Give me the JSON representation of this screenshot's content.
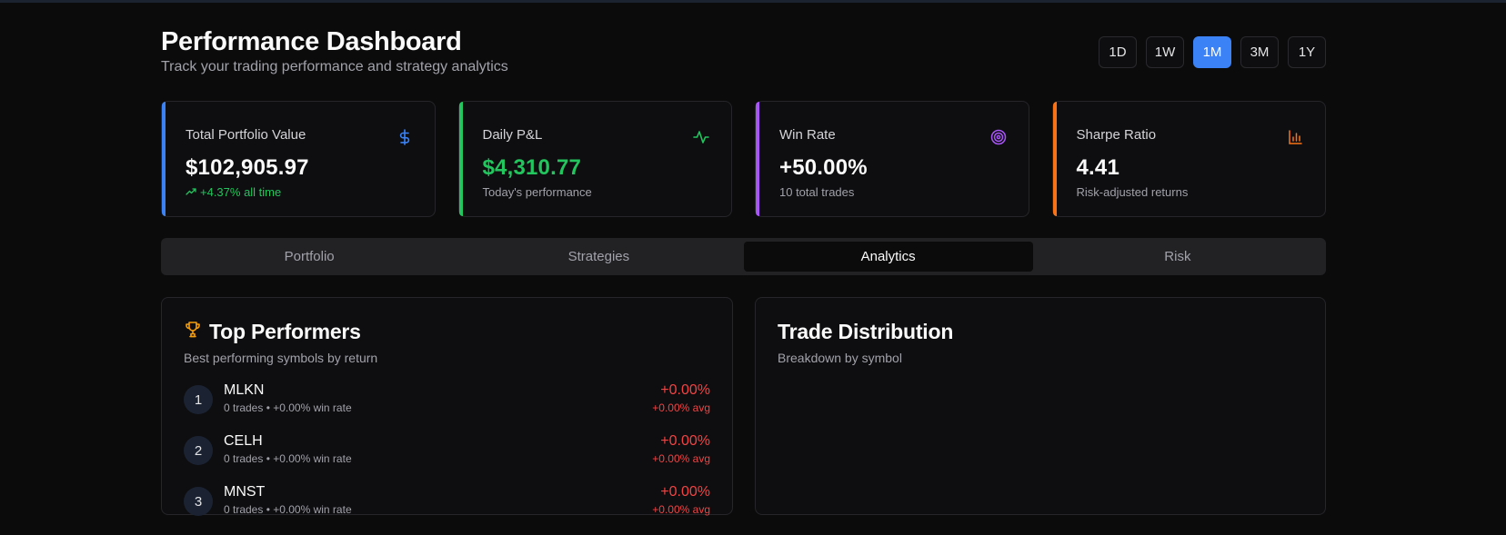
{
  "header": {
    "title": "Performance Dashboard",
    "subtitle": "Track your trading performance and strategy analytics"
  },
  "timeframes": {
    "options": [
      "1D",
      "1W",
      "1M",
      "3M",
      "1Y"
    ],
    "selected": "1M"
  },
  "colors": {
    "accent_blue": "#3b82f6",
    "green": "#22c55e",
    "purple": "#a855f7",
    "orange": "#f97316",
    "red": "#ef4444",
    "gold": "#f59e0b"
  },
  "stats": [
    {
      "label": "Total Portfolio Value",
      "value": "$102,905.97",
      "sub": "+4.37% all time",
      "icon": "dollar-icon"
    },
    {
      "label": "Daily P&L",
      "value": "$4,310.77",
      "sub": "Today's performance",
      "icon": "activity-icon"
    },
    {
      "label": "Win Rate",
      "value": "+50.00%",
      "sub": "10 total trades",
      "icon": "target-icon"
    },
    {
      "label": "Sharpe Ratio",
      "value": "4.41",
      "sub": "Risk-adjusted returns",
      "icon": "bar-chart-icon"
    }
  ],
  "tabs": [
    "Portfolio",
    "Strategies",
    "Analytics",
    "Risk"
  ],
  "active_tab": "Analytics",
  "top_performers": {
    "title": "Top Performers",
    "description": "Best performing symbols by return",
    "icon": "trophy-icon",
    "rows": [
      {
        "rank": "1",
        "symbol": "MLKN",
        "meta": "0 trades • +0.00% win rate",
        "return": "+0.00%",
        "avg": "+0.00% avg"
      },
      {
        "rank": "2",
        "symbol": "CELH",
        "meta": "0 trades • +0.00% win rate",
        "return": "+0.00%",
        "avg": "+0.00% avg"
      },
      {
        "rank": "3",
        "symbol": "MNST",
        "meta": "0 trades • +0.00% win rate",
        "return": "+0.00%",
        "avg": "+0.00% avg"
      }
    ]
  },
  "trade_distribution": {
    "title": "Trade Distribution",
    "description": "Breakdown by symbol"
  }
}
